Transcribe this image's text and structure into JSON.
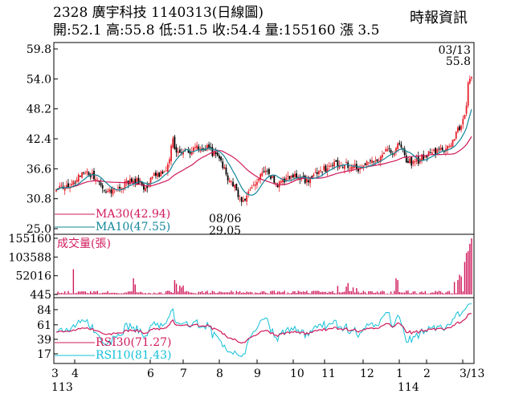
{
  "header": {
    "code": "2328",
    "name": "廣宇科技",
    "date": "1140313",
    "period": "(日線圖)",
    "ohlc": "開:52.1 高:55.8 低:51.5 收:54.4 量:155160 漲 3.5",
    "brand": "時報資訊"
  },
  "colors": {
    "up": "#e8202a",
    "down": "#000000",
    "ma30": "#d01a5c",
    "ma10": "#13869a",
    "rsi30": "#d01a5c",
    "rsi10": "#13c0d8",
    "volume": "#d01a5c"
  },
  "chart_data": [
    {
      "type": "candlestick",
      "panel": "price",
      "ylim": [
        25.0,
        59.8
      ],
      "yticks": [
        25.0,
        30.8,
        36.6,
        42.4,
        48.2,
        54.0,
        59.8
      ],
      "annotations": [
        {
          "label": "03/13",
          "value": "55.8"
        },
        {
          "label": "08/06",
          "value": "29.05"
        }
      ],
      "legend": [
        {
          "name": "MA30",
          "value": "(42.94)"
        },
        {
          "name": "MA10",
          "value": "(47.55)"
        }
      ],
      "x_month_labels": [
        "3",
        "4",
        "6",
        "6",
        "7",
        "8",
        "9",
        "10",
        "11",
        "12",
        "1",
        "2",
        "3/13"
      ],
      "x_year_labels": [
        "113",
        "114"
      ],
      "keypoints": [
        [
          0,
          32.5
        ],
        [
          10,
          34
        ],
        [
          18,
          36.5
        ],
        [
          25,
          33.5
        ],
        [
          30,
          32
        ],
        [
          36,
          33
        ],
        [
          45,
          34.5
        ],
        [
          52,
          33
        ],
        [
          58,
          35.5
        ],
        [
          64,
          36
        ],
        [
          68,
          42
        ],
        [
          70,
          40
        ],
        [
          76,
          40
        ],
        [
          82,
          40.5
        ],
        [
          88,
          40.5
        ],
        [
          94,
          39
        ],
        [
          100,
          35
        ],
        [
          104,
          33
        ],
        [
          107,
          31
        ],
        [
          108,
          29.5
        ],
        [
          111,
          31.5
        ],
        [
          116,
          34
        ],
        [
          122,
          36.5
        ],
        [
          128,
          33.5
        ],
        [
          134,
          34.5
        ],
        [
          140,
          35.5
        ],
        [
          146,
          34
        ],
        [
          150,
          35
        ],
        [
          156,
          36.5
        ],
        [
          162,
          37.5
        ],
        [
          166,
          37.5
        ],
        [
          172,
          37
        ],
        [
          178,
          36.5
        ],
        [
          184,
          38.5
        ],
        [
          188,
          37.5
        ],
        [
          192,
          41
        ],
        [
          196,
          39
        ],
        [
          200,
          41.5
        ],
        [
          204,
          38.5
        ],
        [
          208,
          37.5
        ],
        [
          214,
          39
        ],
        [
          220,
          40
        ],
        [
          226,
          40
        ],
        [
          230,
          41.5
        ],
        [
          234,
          44
        ],
        [
          236,
          45
        ],
        [
          239,
          49
        ],
        [
          240,
          53
        ],
        [
          242,
          55.8
        ]
      ]
    },
    {
      "type": "bar",
      "panel": "volume",
      "title": "成交量(張)",
      "ylim": [
        445,
        155160
      ],
      "yticks": [
        445,
        52016,
        103588,
        155160
      ],
      "spikes": [
        [
          10,
          70000
        ],
        [
          45,
          45000
        ],
        [
          46,
          28000
        ],
        [
          69,
          40000
        ],
        [
          70,
          30000
        ],
        [
          72,
          25000
        ],
        [
          73,
          20000
        ],
        [
          74,
          25000
        ],
        [
          164,
          24000
        ],
        [
          169,
          22000
        ],
        [
          170,
          32000
        ],
        [
          173,
          20000
        ],
        [
          175,
          18000
        ],
        [
          198,
          45000
        ],
        [
          199,
          40000
        ],
        [
          232,
          35000
        ],
        [
          234,
          40000
        ],
        [
          235,
          55000
        ],
        [
          236,
          50000
        ],
        [
          238,
          90000
        ],
        [
          239,
          115000
        ],
        [
          240,
          120000
        ],
        [
          241,
          140000
        ],
        [
          242,
          155160
        ]
      ]
    },
    {
      "type": "line",
      "panel": "rsi",
      "ylim": [
        6,
        90
      ],
      "yticks": [
        17,
        39,
        61,
        84
      ],
      "legend": [
        {
          "name": "RSI30",
          "value": "(71.27)"
        },
        {
          "name": "RSI10",
          "value": "(81.43)"
        }
      ]
    }
  ]
}
